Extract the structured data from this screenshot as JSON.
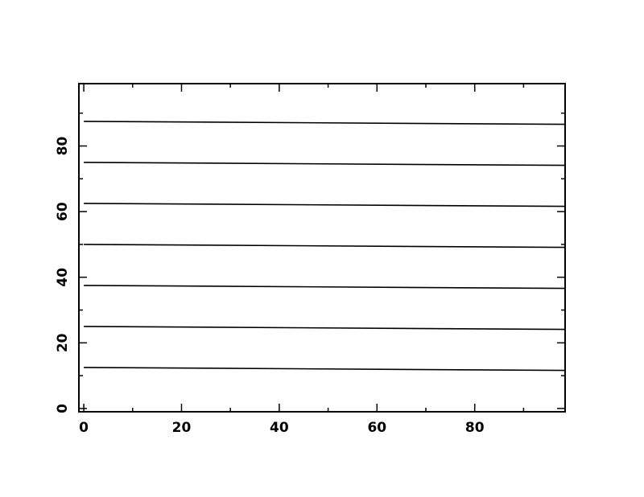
{
  "chart_data": {
    "type": "line",
    "title": "",
    "xlabel": "",
    "ylabel": "",
    "xlim": [
      -1,
      98.5
    ],
    "ylim": [
      -1,
      99
    ],
    "x_ticks": [
      0,
      20,
      40,
      60,
      80
    ],
    "y_ticks": [
      0,
      20,
      40,
      60,
      80
    ],
    "x_tick_labels": [
      "0",
      "20",
      "40",
      "60",
      "80"
    ],
    "y_tick_labels": [
      "0",
      "20",
      "40",
      "60",
      "80"
    ],
    "x_minor_step": 10,
    "y_minor_step": 10,
    "grid": false,
    "series": [
      {
        "x": [
          0,
          98.5
        ],
        "y": [
          12.5,
          11.6
        ]
      },
      {
        "x": [
          0,
          98.5
        ],
        "y": [
          25.0,
          24.1
        ]
      },
      {
        "x": [
          0,
          98.5
        ],
        "y": [
          37.5,
          36.6
        ]
      },
      {
        "x": [
          0,
          98.5
        ],
        "y": [
          50.0,
          49.1
        ]
      },
      {
        "x": [
          0,
          98.5
        ],
        "y": [
          62.5,
          61.6
        ]
      },
      {
        "x": [
          0,
          98.5
        ],
        "y": [
          75.0,
          74.1
        ]
      },
      {
        "x": [
          0,
          98.5
        ],
        "y": [
          87.5,
          86.6
        ]
      }
    ],
    "colors": {
      "axis": "#000000",
      "line": "#000000"
    }
  }
}
